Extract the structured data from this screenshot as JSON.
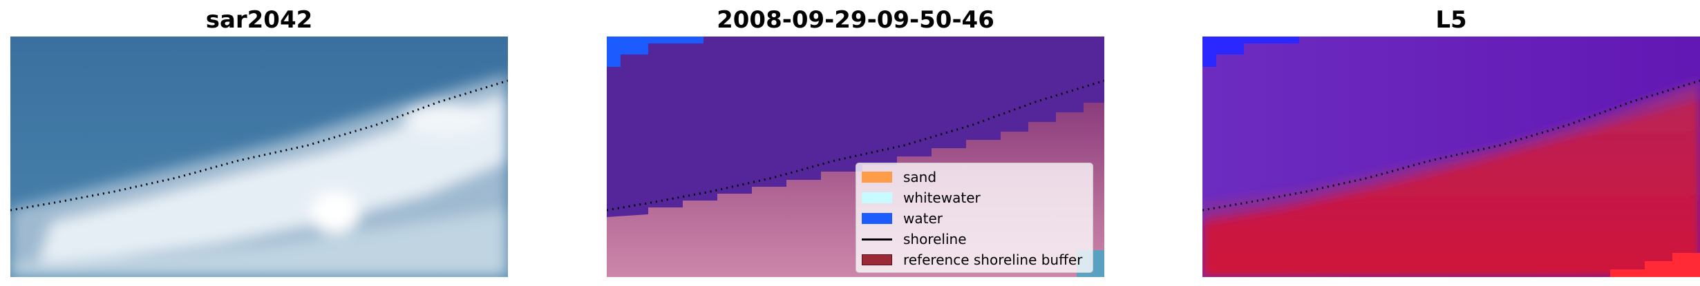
{
  "panels": [
    {
      "title": "sar2042"
    },
    {
      "title": "2008-09-29-09-50-46"
    },
    {
      "title": "L5"
    }
  ],
  "legend": {
    "items": [
      {
        "label": "sand",
        "color": "#ff9c4a",
        "kind": "patch"
      },
      {
        "label": "whitewater",
        "color": "#c8fbff",
        "kind": "patch"
      },
      {
        "label": "water",
        "color": "#1c5cff",
        "kind": "patch"
      },
      {
        "label": "shoreline",
        "color": "#000000",
        "kind": "line"
      },
      {
        "label": "reference shoreline buffer",
        "color": "#9c2a36",
        "kind": "patch"
      }
    ]
  },
  "colors": {
    "sea_rgb": "#3f78a6",
    "surf_white": "#e2ecf3",
    "water_class": "#55269a",
    "sand_class": "#a44e86",
    "water_ndwi": "#6a22b8",
    "land_ndwi": "#c8163e"
  }
}
